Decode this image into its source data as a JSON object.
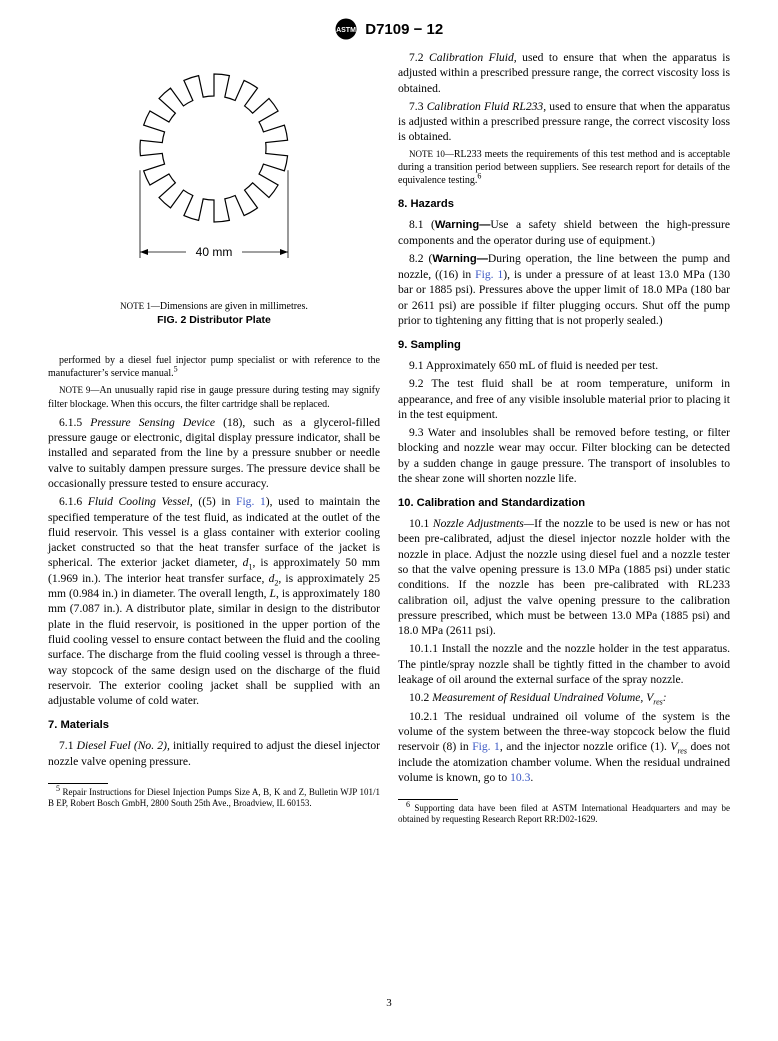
{
  "header": {
    "designation": "D7109 − 12"
  },
  "figure2": {
    "note_label": "NOTE 1—",
    "note_text": "Dimensions are given in millimetres.",
    "caption": "FIG. 2 Distributor Plate",
    "dimension_label": "40 mm",
    "outer_radius": 74,
    "inner_radius": 52,
    "num_teeth": 15,
    "stroke": "#000000",
    "fill": "#ffffff"
  },
  "left": {
    "p0": "performed by a diesel fuel injector pump specialist or with reference to the manufacturer’s service manual.",
    "p0_sup": "5",
    "note9_label": "NOTE 9—",
    "note9": "An unusually rapid rise in gauge pressure during testing may signify filter blockage. When this occurs, the filter cartridge shall be replaced.",
    "p615a": "6.1.5 ",
    "p615b": "Pressure Sensing Device",
    "p615c": " (18), such as a glycerol-filled pressure gauge or electronic, digital display pressure indicator, shall be installed and separated from the line by a pressure snubber or needle valve to suitably dampen pressure surges. The pressure device shall be occasionally pressure tested to ensure accuracy.",
    "p616a": "6.1.6 ",
    "p616b": "Fluid Cooling Vessel,",
    "p616c": " ((5) in ",
    "p616_link": "Fig. 1",
    "p616d": "), used to maintain the specified temperature of the test fluid, as indicated at the outlet of the fluid reservoir. This vessel is a glass container with exterior cooling jacket constructed so that the heat transfer surface of the jacket is spherical. The exterior jacket diameter, ",
    "p616_d1": "d",
    "p616_d1sub": "1",
    "p616e": ", is approximately 50 mm (1.969 in.). The interior heat transfer surface, ",
    "p616_d2": "d",
    "p616_d2sub": "2",
    "p616f": ", is approximately 25 mm (0.984 in.) in diameter. The overall length, ",
    "p616_L": "L",
    "p616g": ", is approximately 180 mm (7.087 in.). A distributor plate, similar in design to the distributor plate in the fluid reservoir, is positioned in the upper portion of the fluid cooling vessel to ensure contact between the fluid and the cooling surface. The discharge from the fluid cooling vessel is through a three-way stopcock of the same design used on the discharge of the fluid reservoir. The exterior cooling jacket shall be supplied with an adjustable volume of cold water.",
    "h7": "7. Materials",
    "p71a": "7.1 ",
    "p71b": "Diesel Fuel (No. 2),",
    "p71c": " initially required to adjust the diesel injector nozzle valve opening pressure.",
    "fn5_sup": "5",
    "fn5": " Repair Instructions for Diesel Injection Pumps Size A, B, K and Z, Bulletin WJP 101/1 B EP, Robert Bosch GmbH, 2800 South 25th Ave., Broadview, IL 60153."
  },
  "right": {
    "p72a": "7.2 ",
    "p72b": "Calibration Fluid,",
    "p72c": " used to ensure that when the apparatus is adjusted within a prescribed pressure range, the correct viscosity loss is obtained.",
    "p73a": "7.3 ",
    "p73b": "Calibration Fluid RL233,",
    "p73c": " used to ensure that when the apparatus is adjusted within a prescribed pressure range, the correct viscosity loss is obtained.",
    "note10_label": "NOTE 10—",
    "note10": "RL233 meets the requirements of this test method and is acceptable during a transition period between suppliers. See research report for details of the equivalence testing.",
    "note10_sup": "6",
    "h8": "8. Hazards",
    "p81a": "8.1 (",
    "p81b": "Warning—",
    "p81c": "Use a safety shield between the high-pressure components and the operator during use of equipment.)",
    "p82a": "8.2 (",
    "p82b": "Warning—",
    "p82c": "During operation, the line between the pump and nozzle, ((16) in ",
    "p82_link": "Fig. 1",
    "p82d": "), is under a pressure of at least 13.0 MPa (130 bar or 1885 psi). Pressures above the upper limit of 18.0 MPa (180 bar or 2611 psi) are possible if filter plugging occurs. Shut off the pump prior to tightening any fitting that is not properly sealed.)",
    "h9": "9. Sampling",
    "p91": "9.1 Approximately 650 mL of fluid is needed per test.",
    "p92": "9.2 The test fluid shall be at room temperature, uniform in appearance, and free of any visible insoluble material prior to placing it in the test equipment.",
    "p93": "9.3 Water and insolubles shall be removed before testing, or filter blocking and nozzle wear may occur. Filter blocking can be detected by a sudden change in gauge pressure. The transport of insolubles to the shear zone will shorten nozzle life.",
    "h10": "10. Calibration and Standardization",
    "p101a": "10.1 ",
    "p101b": "Nozzle Adjustments—",
    "p101c": "If the nozzle to be used is new or has not been pre-calibrated, adjust the diesel injector nozzle holder with the nozzle in place. Adjust the nozzle using diesel fuel and a nozzle tester so that the valve opening pressure is 13.0 MPa (1885 psi) under static conditions. If the nozzle has been pre-calibrated with RL233 calibration oil, adjust the valve opening pressure to the calibration pressure prescribed, which must be between 13.0 MPa (1885 psi) and 18.0 MPa (2611 psi).",
    "p1011": "10.1.1 Install the nozzle and the nozzle holder in the test apparatus. The pintle/spray nozzle shall be tightly fitted in the chamber to avoid leakage of oil around the external surface of the spray nozzle.",
    "p102a": "10.2 ",
    "p102b": "Measurement of Residual Undrained Volume, V",
    "p102b_sub": "res",
    "p102b2": ":",
    "p1021a": "10.2.1 The residual undrained oil volume of the system is the volume of the system between the three-way stopcock below the fluid reservoir (8) in ",
    "p1021_link": "Fig. 1",
    "p1021b": ", and the injector nozzle orifice (1). ",
    "p1021_V": "V",
    "p1021_Vsub": "res",
    "p1021c": " does not include the atomization chamber volume. When the residual undrained volume is known, go to ",
    "p1021_link2": "10.3",
    "p1021d": ".",
    "fn6_sup": "6",
    "fn6": " Supporting data have been filed at ASTM International Headquarters and may be obtained by requesting Research Report RR:D02-1629."
  },
  "page_number": "3"
}
